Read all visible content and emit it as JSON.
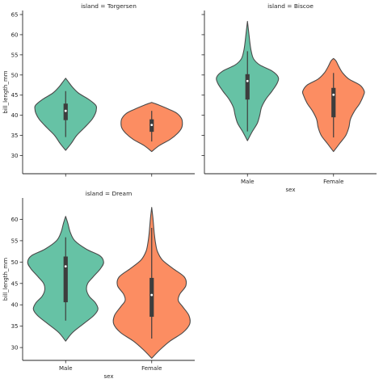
{
  "chart_data": [
    {
      "type": "violin",
      "title": "island = Torgersen",
      "xlabel": "",
      "ylabel": "bill_length_mm",
      "ylim": [
        25.5,
        66
      ],
      "yticks": [
        30,
        35,
        40,
        45,
        50,
        55,
        60,
        65
      ],
      "categories": [
        "Male",
        "Female"
      ],
      "show_xticklabels": false,
      "colors": [
        "#66c2a5",
        "#fc8d62"
      ],
      "series": [
        {
          "name": "Male",
          "kde": [
            [
              31.3,
              0.0
            ],
            [
              33,
              0.18
            ],
            [
              35,
              0.36
            ],
            [
              37,
              0.62
            ],
            [
              39,
              0.86
            ],
            [
              40.5,
              0.97
            ],
            [
              41.5,
              1.0
            ],
            [
              42.5,
              0.98
            ],
            [
              44,
              0.74
            ],
            [
              45.5,
              0.42
            ],
            [
              47,
              0.22
            ],
            [
              48.3,
              0.09
            ],
            [
              49.2,
              0.0
            ]
          ],
          "q1": 38.8,
          "median": 41.1,
          "q3": 42.9,
          "whisker_low": 34.6,
          "whisker_high": 46.0
        },
        {
          "name": "Female",
          "kde": [
            [
              31.0,
              0.0
            ],
            [
              32.5,
              0.25
            ],
            [
              34,
              0.6
            ],
            [
              35.5,
              0.84
            ],
            [
              36.8,
              0.97
            ],
            [
              38,
              1.0
            ],
            [
              39.2,
              0.97
            ],
            [
              40.5,
              0.82
            ],
            [
              41.5,
              0.56
            ],
            [
              42.5,
              0.25
            ],
            [
              43.2,
              0.0
            ]
          ],
          "q1": 35.9,
          "median": 37.6,
          "q3": 39.0,
          "whisker_low": 33.5,
          "whisker_high": 41.1
        }
      ]
    },
    {
      "type": "violin",
      "title": "island = Biscoe",
      "xlabel": "sex",
      "ylabel": "",
      "ylim": [
        25.5,
        66
      ],
      "yticks": [
        30,
        35,
        40,
        45,
        50,
        55,
        60,
        65
      ],
      "show_yticklabels": false,
      "categories": [
        "Male",
        "Female"
      ],
      "show_xticklabels": true,
      "colors": [
        "#66c2a5",
        "#fc8d62"
      ],
      "series": [
        {
          "name": "Male",
          "kde": [
            [
              33.7,
              0.0
            ],
            [
              36,
              0.16
            ],
            [
              38,
              0.32
            ],
            [
              40,
              0.4
            ],
            [
              42,
              0.46
            ],
            [
              44,
              0.6
            ],
            [
              46,
              0.8
            ],
            [
              48,
              0.97
            ],
            [
              49.5,
              1.0
            ],
            [
              51,
              0.8
            ],
            [
              52.5,
              0.4
            ],
            [
              54,
              0.2
            ],
            [
              56,
              0.12
            ],
            [
              58,
              0.08
            ],
            [
              60,
              0.05
            ],
            [
              62,
              0.02
            ],
            [
              63.3,
              0.0
            ]
          ],
          "q1": 43.9,
          "median": 48.5,
          "q3": 50.2,
          "whisker_low": 36.0,
          "whisker_high": 55.9
        },
        {
          "name": "Female",
          "kde": [
            [
              31.0,
              0.0
            ],
            [
              33,
              0.2
            ],
            [
              35,
              0.4
            ],
            [
              37,
              0.5
            ],
            [
              39,
              0.55
            ],
            [
              41,
              0.68
            ],
            [
              43,
              0.86
            ],
            [
              45,
              0.98
            ],
            [
              46,
              1.0
            ],
            [
              47.5,
              0.86
            ],
            [
              49,
              0.5
            ],
            [
              50.5,
              0.3
            ],
            [
              52,
              0.18
            ],
            [
              53.5,
              0.08
            ],
            [
              54.1,
              0.0
            ]
          ],
          "q1": 39.5,
          "median": 45.1,
          "q3": 46.8,
          "whisker_low": 34.5,
          "whisker_high": 50.5
        }
      ]
    },
    {
      "type": "violin",
      "title": "island = Dream",
      "xlabel": "sex",
      "ylabel": "bill_length_mm",
      "ylim": [
        27,
        65
      ],
      "yticks": [
        30,
        35,
        40,
        45,
        50,
        55,
        60
      ],
      "categories": [
        "Male",
        "Female"
      ],
      "show_xticklabels": true,
      "colors": [
        "#66c2a5",
        "#fc8d62"
      ],
      "series": [
        {
          "name": "Male",
          "kde": [
            [
              31.5,
              0.0
            ],
            [
              33.5,
              0.18
            ],
            [
              35.5,
              0.46
            ],
            [
              37.5,
              0.74
            ],
            [
              39,
              0.85
            ],
            [
              40.5,
              0.78
            ],
            [
              42,
              0.62
            ],
            [
              43.5,
              0.55
            ],
            [
              45,
              0.58
            ],
            [
              46.5,
              0.72
            ],
            [
              48.5,
              0.92
            ],
            [
              50,
              1.0
            ],
            [
              51.5,
              0.9
            ],
            [
              53,
              0.55
            ],
            [
              55,
              0.24
            ],
            [
              57,
              0.12
            ],
            [
              59,
              0.06
            ],
            [
              60.7,
              0.0
            ]
          ],
          "q1": 40.6,
          "median": 49.0,
          "q3": 51.3,
          "whisker_low": 36.3,
          "whisker_high": 55.8
        },
        {
          "name": "Female",
          "kde": [
            [
              27.5,
              0.0
            ],
            [
              29.5,
              0.22
            ],
            [
              31.5,
              0.48
            ],
            [
              33.5,
              0.82
            ],
            [
              35.5,
              1.0
            ],
            [
              37.5,
              0.98
            ],
            [
              39.5,
              0.82
            ],
            [
              41,
              0.7
            ],
            [
              42.5,
              0.74
            ],
            [
              44.5,
              0.9
            ],
            [
              46.5,
              0.86
            ],
            [
              48.5,
              0.56
            ],
            [
              50.5,
              0.28
            ],
            [
              52.5,
              0.15
            ],
            [
              54.5,
              0.1
            ],
            [
              56.5,
              0.07
            ],
            [
              58.5,
              0.05
            ],
            [
              60.5,
              0.03
            ],
            [
              62.8,
              0.0
            ]
          ],
          "q1": 37.2,
          "median": 42.3,
          "q3": 46.3,
          "whisker_low": 32.1,
          "whisker_high": 58.0
        }
      ]
    }
  ]
}
